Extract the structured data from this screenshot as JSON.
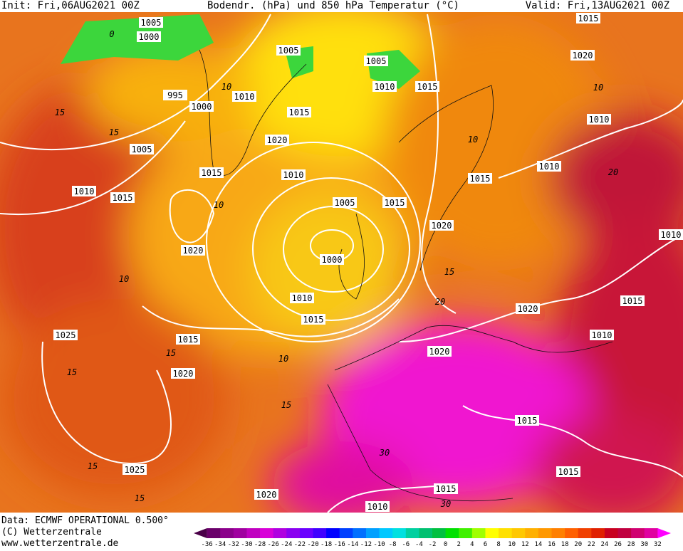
{
  "header": {
    "init": "Init: Fri,06AUG2021 00Z",
    "title": "Bodendr. (hPa) und 850 hPa Temperatur (°C)",
    "valid": "Valid: Fri,13AUG2021 00Z"
  },
  "footer": {
    "data": "Data: ECMWF OPERATIONAL 0.500°",
    "copyright": "(C) Wetterzentrale",
    "website": "www.wetterzentrale.de"
  },
  "isobar_labels": [
    "1005",
    "1000",
    "995",
    "1000",
    "1005",
    "1010",
    "1015",
    "1010",
    "1005",
    "1015",
    "1020",
    "1015",
    "1010",
    "1005",
    "1000",
    "1010",
    "1015",
    "1015",
    "1020",
    "1020",
    "1015",
    "1025",
    "1020",
    "1025",
    "1020",
    "1010",
    "1015",
    "1015",
    "1015",
    "1020",
    "1020",
    "1010",
    "1015",
    "1010",
    "1010",
    "1015",
    "1010",
    "1020",
    "1015",
    "1005",
    "1010",
    "1015"
  ],
  "temperature_labels": [
    "0",
    "10",
    "15",
    "15",
    "10",
    "10",
    "15",
    "15",
    "15",
    "15",
    "15",
    "10",
    "15",
    "20",
    "30",
    "30",
    "20",
    "10",
    "10"
  ],
  "color_scale": {
    "labels": [
      "-36",
      "-34",
      "-32",
      "-30",
      "-28",
      "-26",
      "-24",
      "-22",
      "-20",
      "-18",
      "-16",
      "-14",
      "-12",
      "-10",
      "-8",
      "-6",
      "-4",
      "-2",
      "0",
      "2",
      "4",
      "6",
      "8",
      "10",
      "12",
      "14",
      "16",
      "18",
      "20",
      "22",
      "24",
      "26",
      "28",
      "30",
      "32"
    ],
    "colors": [
      "#4a0048",
      "#6a006a",
      "#8b008b",
      "#a000a0",
      "#c000c0",
      "#d800d8",
      "#b000e0",
      "#8a00f0",
      "#6a00ff",
      "#4000ff",
      "#0000ff",
      "#0040ff",
      "#0070ff",
      "#00a0ff",
      "#00c8ff",
      "#00e0e0",
      "#00d0a0",
      "#00c070",
      "#00c040",
      "#00e000",
      "#40f000",
      "#a0ff00",
      "#ffff00",
      "#ffe000",
      "#ffc800",
      "#ffb000",
      "#ff9800",
      "#ff8000",
      "#ff6000",
      "#f04000",
      "#e02000",
      "#c80020",
      "#c00040",
      "#d00070",
      "#e000a0",
      "#ff00ff"
    ]
  }
}
